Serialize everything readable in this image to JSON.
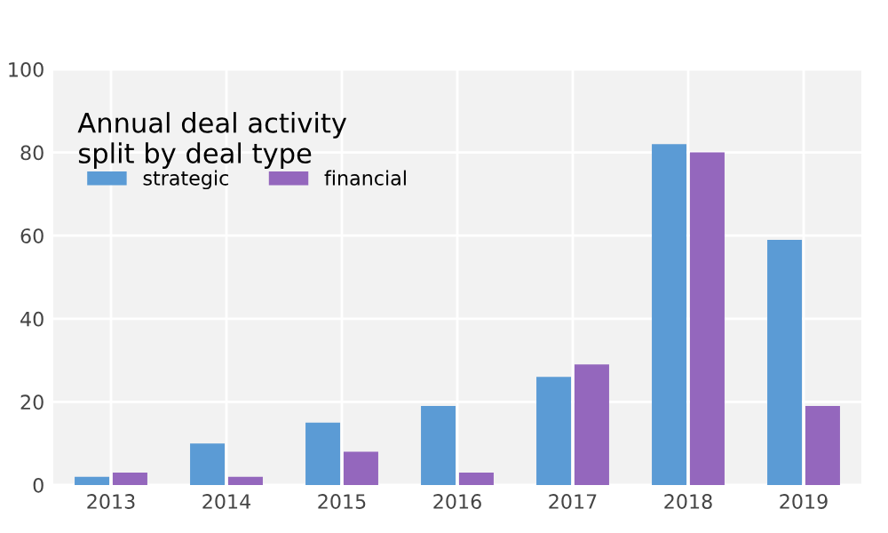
{
  "chart_data": {
    "type": "bar",
    "title": "Annual deal activity\nsplit by deal type",
    "categories": [
      "2013",
      "2014",
      "2015",
      "2016",
      "2017",
      "2018",
      "2019"
    ],
    "series": [
      {
        "name": "strategic",
        "color": "#5b9bd5",
        "values": [
          2,
          10,
          15,
          19,
          26,
          82,
          59
        ]
      },
      {
        "name": "financial",
        "color": "#9467bd",
        "values": [
          3,
          2,
          8,
          3,
          29,
          80,
          19
        ]
      }
    ],
    "ylim": [
      0,
      100
    ],
    "yticks": [
      0,
      20,
      40,
      60,
      80,
      100
    ],
    "grid": true,
    "legend": "top left"
  }
}
